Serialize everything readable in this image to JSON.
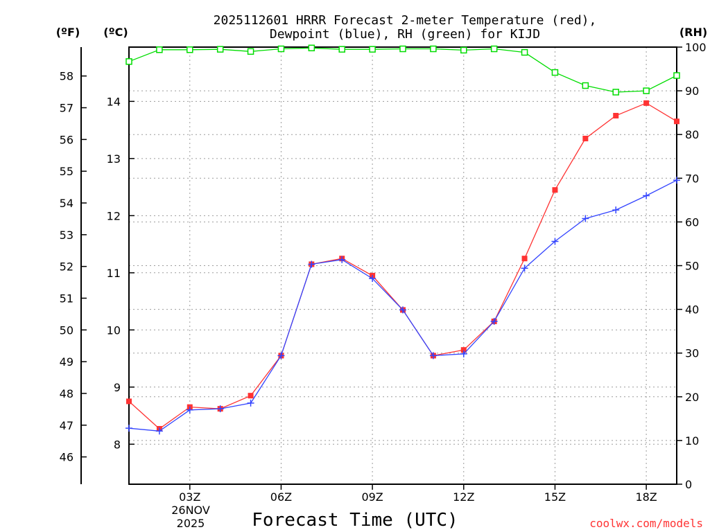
{
  "chart_data": {
    "type": "line",
    "title_lines": [
      "2025112601 HRRR Forecast 2-meter Temperature (red),",
      "Dewpoint (blue), RH (green) for KIJD"
    ],
    "axis_labels": {
      "fahrenheit": "(ºF)",
      "celsius": "(ºC)",
      "rh": "(RH)"
    },
    "xlabel": "Forecast Time (UTC)",
    "date_label": [
      "26NOV",
      "2025"
    ],
    "credit": "coolwx.com/models",
    "x_hours": [
      1,
      2,
      3,
      4,
      5,
      6,
      7,
      8,
      9,
      10,
      11,
      12,
      13,
      14,
      15,
      16,
      17,
      18,
      19
    ],
    "xlim": [
      1,
      19
    ],
    "x_ticks": [
      3,
      6,
      9,
      12,
      15,
      18
    ],
    "x_tick_labels": [
      "03Z",
      "06Z",
      "09Z",
      "12Z",
      "15Z",
      "18Z"
    ],
    "celsius_lim": [
      7.3,
      14.95
    ],
    "celsius_ticks": [
      8,
      9,
      10,
      11,
      12,
      13,
      14
    ],
    "fahrenheit_ticks": [
      46,
      47,
      48,
      49,
      50,
      51,
      52,
      53,
      54,
      55,
      56,
      57,
      58
    ],
    "rh_lim": [
      0,
      100
    ],
    "rh_ticks": [
      0,
      10,
      20,
      30,
      40,
      50,
      60,
      70,
      80,
      90,
      100
    ],
    "colors": {
      "temperature": "#ff3333",
      "dewpoint": "#3344ff",
      "rh": "#00dd00"
    },
    "series": [
      {
        "name": "Temperature",
        "unit": "C",
        "marker": "square",
        "values": [
          8.75,
          8.27,
          8.65,
          8.62,
          8.85,
          9.55,
          11.15,
          11.25,
          10.95,
          10.35,
          9.55,
          9.65,
          10.15,
          11.25,
          12.45,
          13.35,
          13.75,
          13.97,
          13.65
        ]
      },
      {
        "name": "Dewpoint",
        "unit": "C",
        "marker": "plus",
        "values": [
          8.28,
          8.23,
          8.6,
          8.62,
          8.72,
          9.55,
          11.15,
          11.23,
          10.9,
          10.35,
          9.55,
          9.58,
          10.15,
          11.08,
          11.55,
          11.95,
          12.1,
          12.35,
          12.62
        ]
      },
      {
        "name": "RH",
        "unit": "%",
        "marker": "open-square",
        "values": [
          96.7,
          99.4,
          99.4,
          99.5,
          99.0,
          99.6,
          99.8,
          99.5,
          99.5,
          99.6,
          99.6,
          99.3,
          99.6,
          98.8,
          94.2,
          91.2,
          89.7,
          90.0,
          93.5
        ]
      }
    ]
  }
}
